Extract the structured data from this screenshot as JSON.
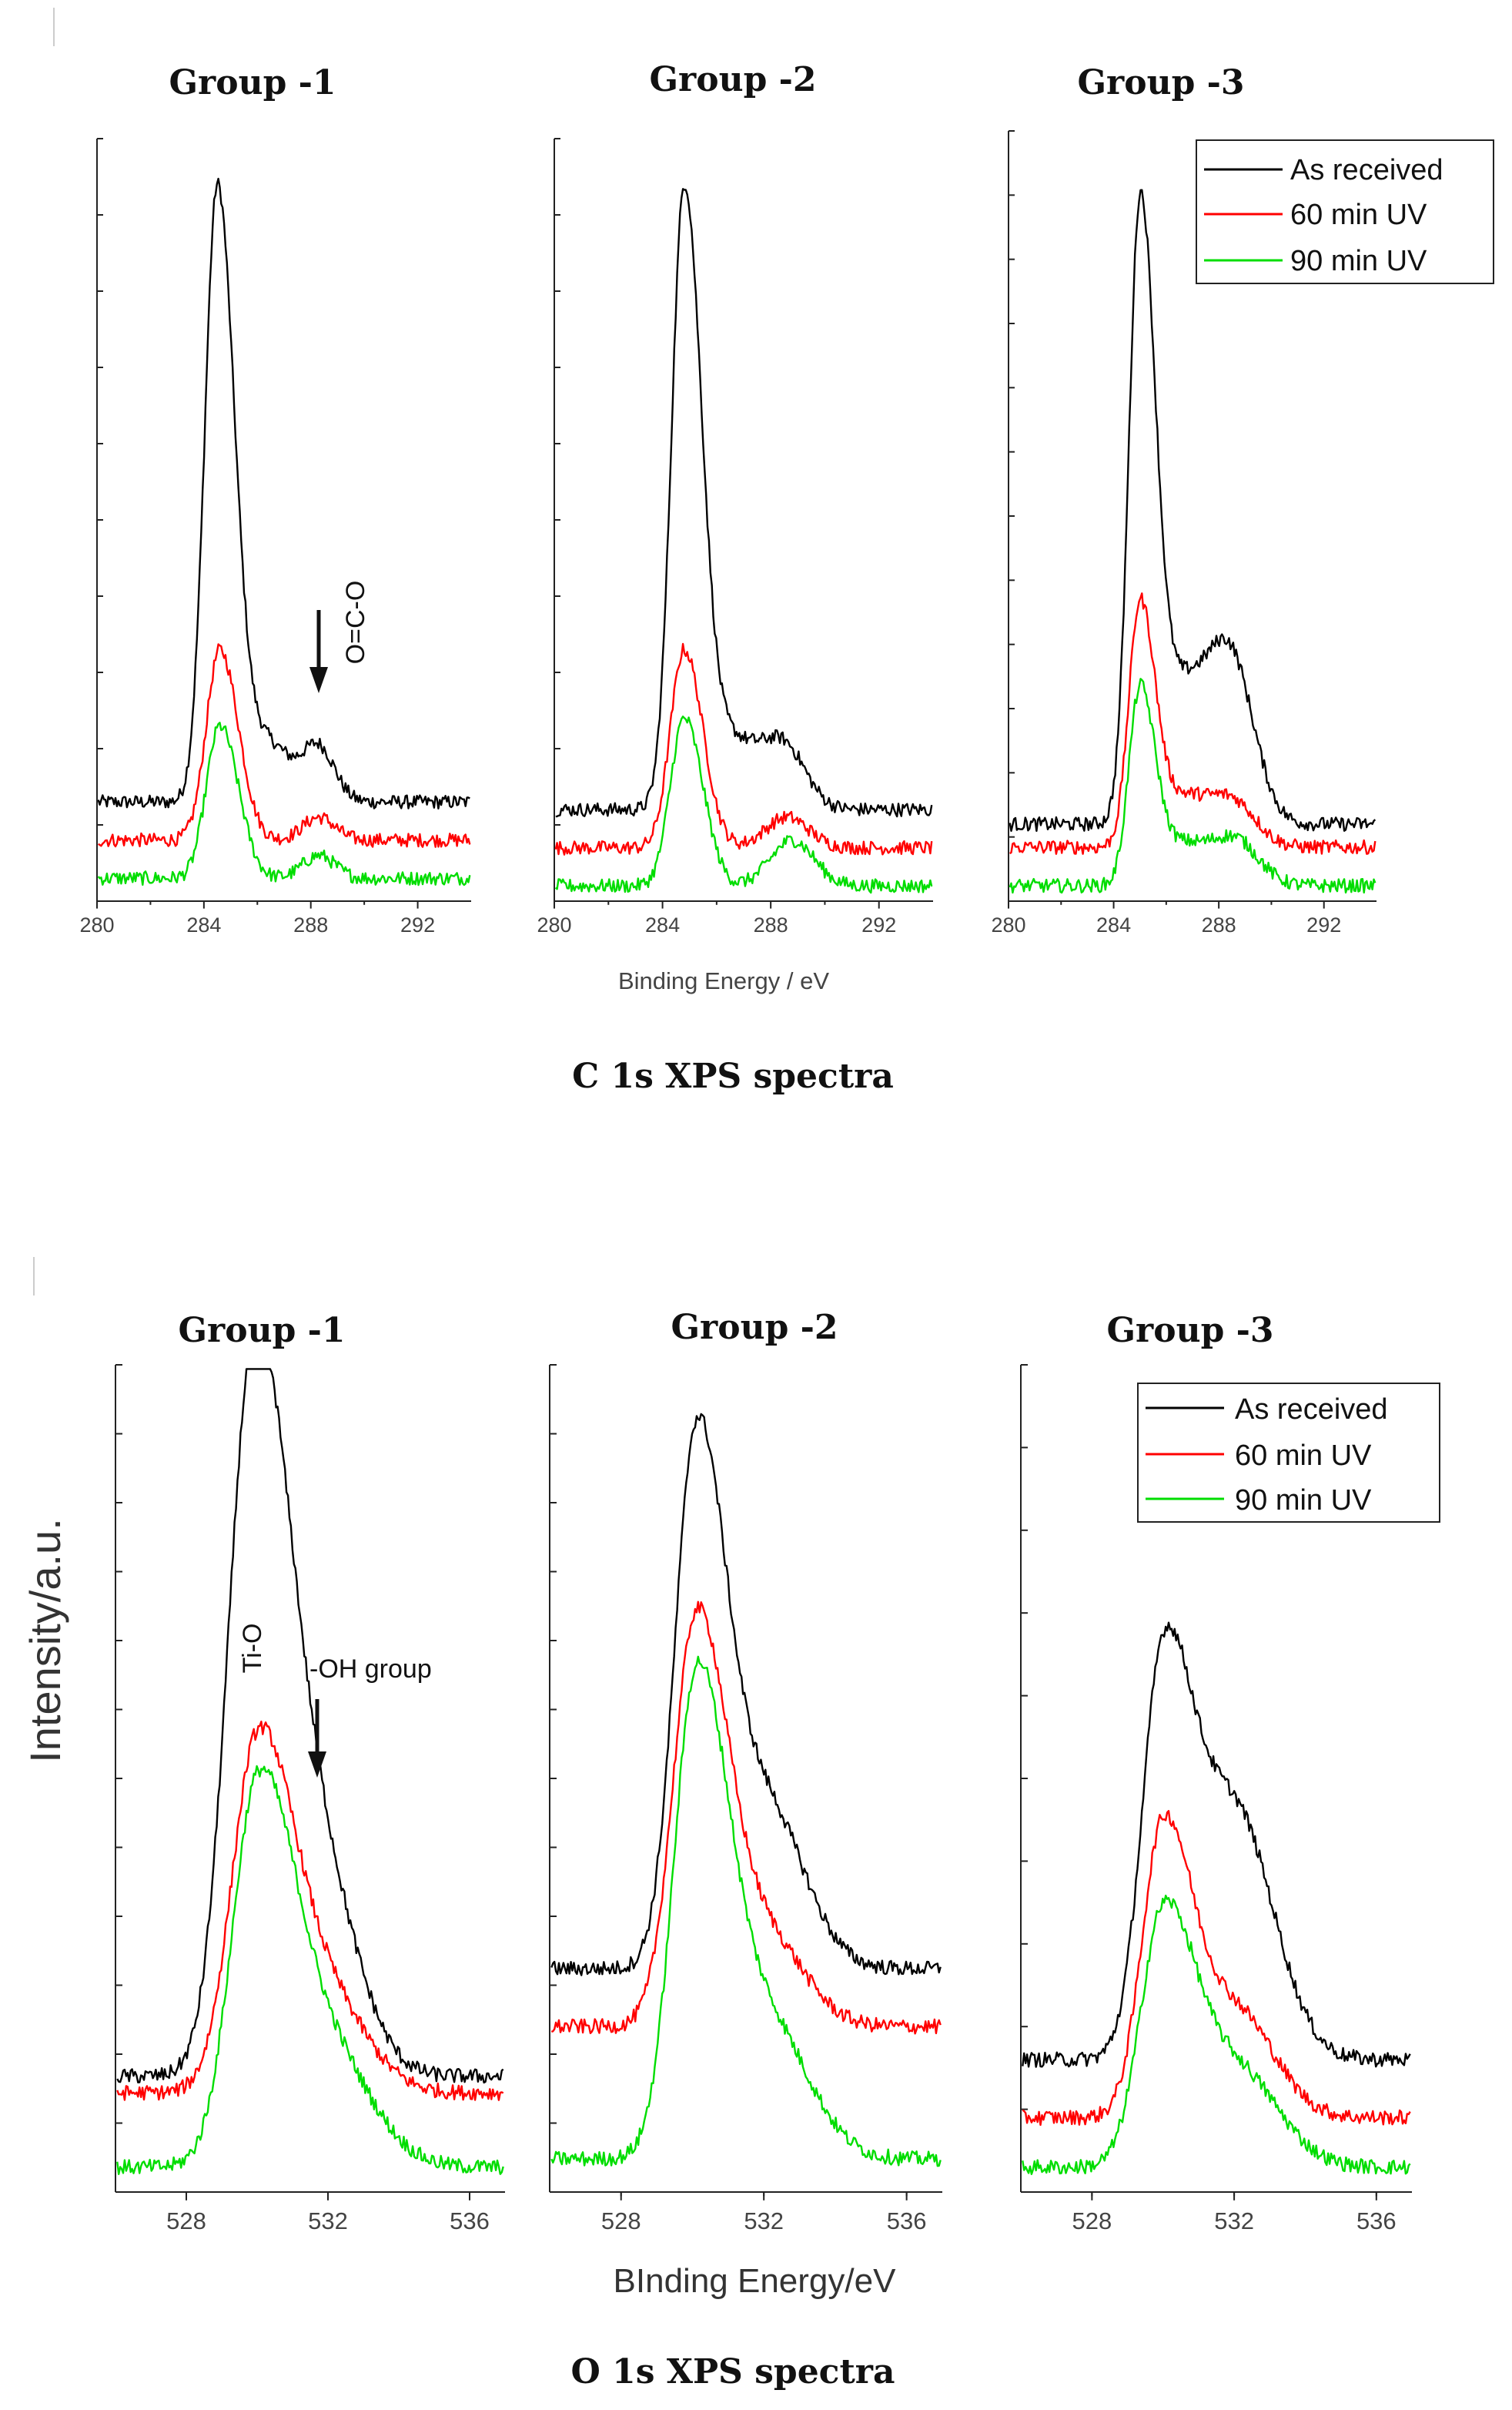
{
  "figures": [
    {
      "caption": "C 1s XPS spectra",
      "xlabel": "Binding Energy / eV",
      "xlim": [
        280,
        294
      ],
      "xticks": [
        "280",
        "284",
        "288",
        "292"
      ],
      "panels": [
        {
          "title": "Group -1",
          "annotation": {
            "text": "O=C-O",
            "energy": 288.3
          },
          "peaks": [
            {
              "series": "As received",
              "base": 0.13,
              "main": [
                284.5,
                0.8,
                0.55
              ],
              "shoulders": [
                [
                  286.3,
                  0.08,
                  0.9
                ],
                [
                  288.3,
                  0.07,
                  0.6
                ]
              ]
            },
            {
              "series": "60 min UV",
              "base": 0.08,
              "main": [
                284.6,
                0.25,
                0.6
              ],
              "shoulders": [
                [
                  288.3,
                  0.03,
                  0.6
                ]
              ]
            },
            {
              "series": "90 min UV",
              "base": 0.03,
              "main": [
                284.6,
                0.2,
                0.6
              ],
              "shoulders": [
                [
                  288.3,
                  0.03,
                  0.6
                ]
              ]
            }
          ]
        },
        {
          "title": "Group -2",
          "peaks": [
            {
              "series": "As received",
              "base": 0.12,
              "main": [
                284.8,
                0.8,
                0.55
              ],
              "shoulders": [
                [
                  286.5,
                  0.09,
                  1.0
                ],
                [
                  288.5,
                  0.08,
                  0.8
                ]
              ]
            },
            {
              "series": "60 min UV",
              "base": 0.07,
              "main": [
                284.8,
                0.26,
                0.6
              ],
              "shoulders": [
                [
                  288.6,
                  0.04,
                  0.8
                ]
              ]
            },
            {
              "series": "90 min UV",
              "base": 0.02,
              "main": [
                284.8,
                0.22,
                0.6
              ],
              "shoulders": [
                [
                  288.8,
                  0.06,
                  0.8
                ]
              ]
            }
          ]
        },
        {
          "title": "Group -3",
          "peaks": [
            {
              "series": "As received",
              "base": 0.1,
              "main": [
                285.0,
                0.78,
                0.5
              ],
              "shoulders": [
                [
                  286.5,
                  0.16,
                  0.9
                ],
                [
                  288.4,
                  0.22,
                  0.9
                ]
              ]
            },
            {
              "series": "60 min UV",
              "base": 0.07,
              "main": [
                285.0,
                0.31,
                0.5
              ],
              "shoulders": [
                [
                  286.6,
                  0.06,
                  0.9
                ],
                [
                  288.5,
                  0.06,
                  0.9
                ]
              ]
            },
            {
              "series": "90 min UV",
              "base": 0.02,
              "main": [
                285.0,
                0.25,
                0.5
              ],
              "shoulders": [
                [
                  286.6,
                  0.05,
                  0.9
                ],
                [
                  288.6,
                  0.06,
                  0.9
                ]
              ]
            }
          ]
        }
      ]
    },
    {
      "caption": "O 1s XPS spectra",
      "xlabel": "BInding Energy/eV",
      "ylabel": "Intensity/a.u.",
      "xlim": [
        526,
        537
      ],
      "xticks": [
        "528",
        "532",
        "536"
      ],
      "panels": [
        {
          "title": "Group -1",
          "annotations": [
            {
              "text": "Ti-O",
              "energy": 529.9
            },
            {
              "text": "-OH group",
              "energy": 531.6
            }
          ],
          "peaks": [
            {
              "series": "As received",
              "base": 0.14,
              "main": [
                529.9,
                0.84,
                0.85
              ],
              "shoulders": [
                [
                  531.7,
                  0.24,
                  1.1
                ]
              ]
            },
            {
              "series": "60 min UV",
              "base": 0.12,
              "main": [
                530.0,
                0.4,
                0.85
              ],
              "shoulders": [
                [
                  531.8,
                  0.12,
                  1.2
                ]
              ]
            },
            {
              "series": "90 min UV",
              "base": 0.03,
              "main": [
                530.0,
                0.42,
                0.85
              ],
              "shoulders": [
                [
                  531.8,
                  0.15,
                  1.3
                ]
              ]
            }
          ]
        },
        {
          "title": "Group -2",
          "peaks": [
            {
              "series": "As received",
              "base": 0.27,
              "main": [
                530.1,
                0.62,
                0.7
              ],
              "shoulders": [
                [
                  532.0,
                  0.2,
                  1.1
                ]
              ]
            },
            {
              "series": "60 min UV",
              "base": 0.2,
              "main": [
                530.1,
                0.48,
                0.75
              ],
              "shoulders": [
                [
                  532.0,
                  0.11,
                  1.1
                ]
              ]
            },
            {
              "series": "90 min UV",
              "base": 0.04,
              "main": [
                530.1,
                0.55,
                0.75
              ],
              "shoulders": [
                [
                  532.0,
                  0.17,
                  1.2
                ]
              ]
            }
          ]
        },
        {
          "title": "Group -3",
          "peaks": [
            {
              "series": "As received",
              "base": 0.16,
              "main": [
                530.0,
                0.46,
                0.7
              ],
              "shoulders": [
                [
                  532.0,
                  0.3,
                  1.1
                ]
              ]
            },
            {
              "series": "60 min UV",
              "base": 0.09,
              "main": [
                530.0,
                0.34,
                0.7
              ],
              "shoulders": [
                [
                  532.0,
                  0.13,
                  1.1
                ]
              ]
            },
            {
              "series": "90 min UV",
              "base": 0.03,
              "main": [
                530.0,
                0.29,
                0.75
              ],
              "shoulders": [
                [
                  532.0,
                  0.12,
                  1.2
                ]
              ]
            }
          ]
        }
      ]
    }
  ],
  "legend": [
    {
      "name": "As received",
      "color": "#000000"
    },
    {
      "name": "60 min UV",
      "color": "#ff0000"
    },
    {
      "name": "90 min UV",
      "color": "#00dd00"
    }
  ],
  "chart_data": [
    {
      "type": "line",
      "title": "C 1s XPS spectra",
      "xlabel": "Binding Energy / eV",
      "ylabel": "",
      "xlim": [
        280,
        294
      ],
      "panels": [
        "Group -1",
        "Group -2",
        "Group -3"
      ],
      "series": [
        {
          "name": "As received",
          "peak_energy_eV": [
            284.5,
            284.8,
            285.0
          ]
        },
        {
          "name": "60 min UV",
          "peak_energy_eV": [
            284.6,
            284.8,
            285.0
          ]
        },
        {
          "name": "90 min UV",
          "peak_energy_eV": [
            284.6,
            284.8,
            285.0
          ]
        }
      ],
      "annotations": [
        "O=C-O at ~288.3 eV (Group -1)"
      ]
    },
    {
      "type": "line",
      "title": "O 1s XPS spectra",
      "xlabel": "BInding Energy/eV",
      "ylabel": "Intensity/a.u.",
      "xlim": [
        526,
        537
      ],
      "panels": [
        "Group -1",
        "Group -2",
        "Group -3"
      ],
      "series": [
        {
          "name": "As received",
          "peak_energy_eV": [
            529.9,
            530.1,
            530.0
          ]
        },
        {
          "name": "60 min UV",
          "peak_energy_eV": [
            530.0,
            530.1,
            530.0
          ]
        },
        {
          "name": "90 min UV",
          "peak_energy_eV": [
            530.0,
            530.1,
            530.0
          ]
        }
      ],
      "annotations": [
        "Ti-O at ~529.9 eV",
        "-OH group at ~531.6 eV (Group -1)"
      ]
    }
  ]
}
